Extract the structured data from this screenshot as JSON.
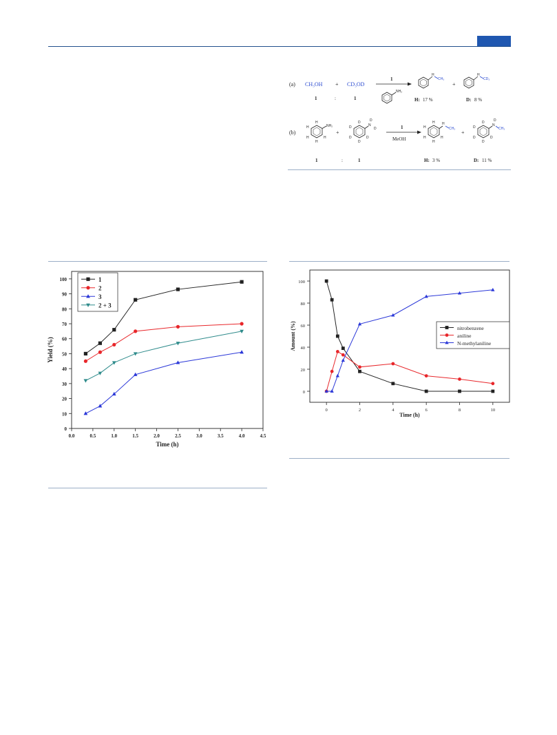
{
  "scheme": {
    "row_a": {
      "label": "(a)",
      "reactant1": "CH₃OH",
      "plus": "+",
      "reactant2": "CD₃OD",
      "ratio1": "1",
      "ratio_sep": ":",
      "ratio2": "1",
      "catalyst": "1",
      "aniline_sub": "NH₂",
      "prod_h_sub": "CH₃",
      "prod_h_n": "H",
      "prod_h_label": "H:",
      "prod_h_yield": "17 %",
      "prod_d_sub": "CD₃",
      "prod_d_n": "H",
      "prod_d_label": "D:",
      "prod_d_yield": "8 %"
    },
    "row_b": {
      "label": "(b)",
      "reactant1_sub": "NH₂",
      "h_atom": "H",
      "d_atom": "D",
      "plus": "+",
      "ratio1": "1",
      "ratio_sep": ":",
      "ratio2": "1",
      "catalyst": "1",
      "solvent": "MeOH",
      "prod_h_sub": "CH₃",
      "prod_h_n": "H",
      "prod_h_label": "H:",
      "prod_h_yield": "3 %",
      "prod_d_sub": "CH₃",
      "prod_d_label": "D:",
      "prod_d_yield": "11 %"
    }
  },
  "chart_data": [
    {
      "type": "line",
      "xlabel": "Time (h)",
      "ylabel": "Yield (%)",
      "xlim": [
        0.0,
        4.5
      ],
      "ylim": [
        0,
        105
      ],
      "xticks": [
        "0.0",
        "0.5",
        "1.0",
        "1.5",
        "2.0",
        "2.5",
        "3.0",
        "3.5",
        "4.0",
        "4.5"
      ],
      "yticks": [
        "0",
        "10",
        "20",
        "30",
        "40",
        "50",
        "60",
        "70",
        "80",
        "90",
        "100"
      ],
      "grid": false,
      "legend_position": "top-left",
      "x": [
        0.33,
        0.67,
        1.0,
        1.5,
        2.5,
        4.0
      ],
      "series": [
        {
          "name": "1",
          "values": [
            50,
            57,
            66,
            86,
            93,
            98
          ],
          "color": "#222222",
          "marker": "square"
        },
        {
          "name": "2",
          "values": [
            45,
            51,
            56,
            65,
            68,
            70
          ],
          "color": "#e8262a",
          "marker": "circle"
        },
        {
          "name": "3",
          "values": [
            10,
            15,
            23,
            36,
            44,
            51
          ],
          "color": "#2a37d8",
          "marker": "triangle-up"
        },
        {
          "name": "2 + 3",
          "values": [
            32,
            37,
            44,
            50,
            57,
            65
          ],
          "color": "#2e8b8b",
          "marker": "triangle-down"
        }
      ]
    },
    {
      "type": "line",
      "xlabel": "Time (h)",
      "ylabel": "Amount (%)",
      "xlim": [
        -1,
        11
      ],
      "ylim": [
        -10,
        110
      ],
      "xticks": [
        "0",
        "2",
        "4",
        "6",
        "8",
        "10"
      ],
      "yticks": [
        "0",
        "20",
        "40",
        "60",
        "80",
        "100"
      ],
      "grid": false,
      "legend_position": "right",
      "x": [
        0,
        0.33,
        0.67,
        1,
        2,
        4,
        6,
        8,
        10
      ],
      "series": [
        {
          "name": "nitrobenzene",
          "values": [
            100,
            83,
            50,
            39,
            18,
            7,
            0,
            0,
            0
          ],
          "color": "#222222",
          "marker": "square"
        },
        {
          "name": "aniline",
          "values": [
            0,
            18,
            36,
            33,
            22,
            25,
            14,
            11,
            7
          ],
          "color": "#e8262a",
          "marker": "circle"
        },
        {
          "name": "N-methylaniline",
          "values": [
            0,
            0,
            14,
            28,
            61,
            69,
            86,
            89,
            92
          ],
          "color": "#2a37d8",
          "marker": "triangle-up"
        }
      ]
    }
  ]
}
